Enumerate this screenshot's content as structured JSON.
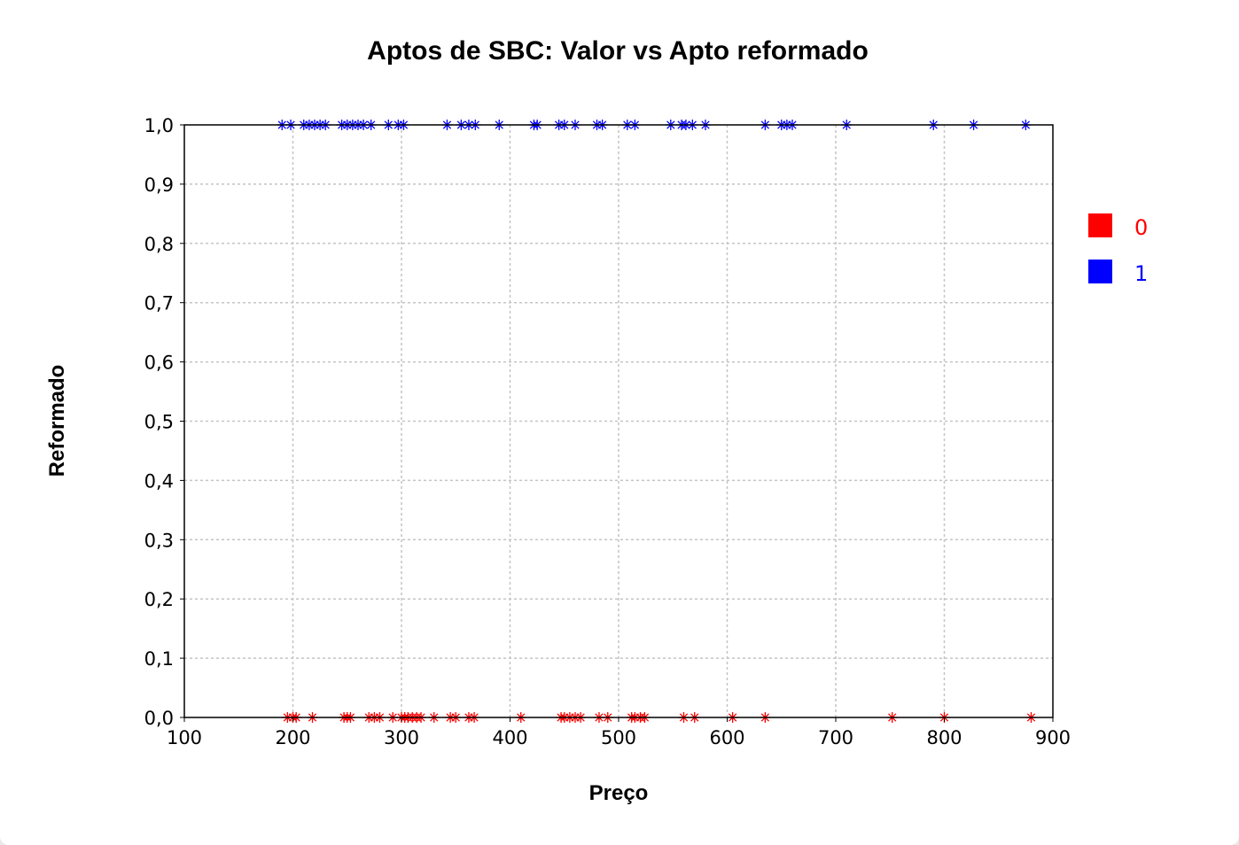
{
  "chart_data": {
    "type": "scatter",
    "title": "Aptos de SBC: Valor vs Apto reformado",
    "xlabel": "Preço",
    "ylabel": "Reformado",
    "xlim": [
      100,
      900
    ],
    "ylim": [
      0,
      1
    ],
    "x_ticks": [
      "100",
      "200",
      "300",
      "400",
      "500",
      "600",
      "700",
      "800",
      "900"
    ],
    "y_ticks": [
      "0,0",
      "0,1",
      "0,2",
      "0,3",
      "0,4",
      "0,5",
      "0,6",
      "0,7",
      "0,8",
      "0,9",
      "1,0"
    ],
    "grid": true,
    "legend_position": "right",
    "marker": "asterisk",
    "series": [
      {
        "name": "0",
        "color": "#ff0000",
        "y": 0,
        "x": [
          195,
          200,
          203,
          218,
          247,
          250,
          253,
          270,
          275,
          280,
          292,
          300,
          303,
          306,
          310,
          314,
          318,
          330,
          345,
          350,
          362,
          367,
          410,
          447,
          450,
          455,
          460,
          465,
          482,
          490,
          512,
          515,
          520,
          524,
          560,
          570,
          605,
          635,
          752,
          800,
          880
        ]
      },
      {
        "name": "1",
        "color": "#0000ff",
        "y": 1,
        "x": [
          190,
          198,
          210,
          215,
          220,
          225,
          230,
          245,
          250,
          255,
          260,
          265,
          272,
          288,
          297,
          302,
          342,
          355,
          362,
          368,
          390,
          422,
          425,
          445,
          450,
          460,
          480,
          485,
          508,
          515,
          548,
          558,
          562,
          568,
          580,
          635,
          650,
          655,
          660,
          710,
          790,
          827,
          875
        ]
      }
    ]
  }
}
